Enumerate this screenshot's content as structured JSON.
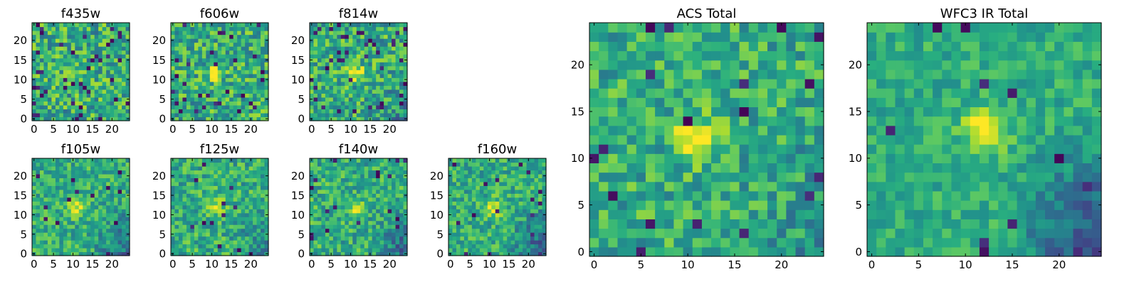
{
  "figure": {
    "colormap": "viridis",
    "colors": {
      "low": "#440154",
      "mid": "#21918c",
      "high": "#fde725",
      "axis": "#000000",
      "background": "#ffffff"
    }
  },
  "chart_data": [
    {
      "type": "heatmap",
      "title": "f435w",
      "grid": [
        25,
        25
      ],
      "xticks": [
        0,
        5,
        10,
        15,
        20
      ],
      "yticks": [
        0,
        5,
        10,
        15,
        20
      ],
      "xlim": [
        -0.5,
        24.5
      ],
      "ylim": [
        -0.5,
        24.5
      ],
      "source_peak": [
        11,
        12
      ],
      "peak_strength": 0.15,
      "noise": 0.95,
      "dark_speckle": 0.06,
      "dark_region": 0.0,
      "seed": 11
    },
    {
      "type": "heatmap",
      "title": "f606w",
      "grid": [
        25,
        25
      ],
      "xticks": [
        0,
        5,
        10,
        15,
        20
      ],
      "yticks": [
        0,
        5,
        10,
        15,
        20
      ],
      "xlim": [
        -0.5,
        24.5
      ],
      "ylim": [
        -0.5,
        24.5
      ],
      "source_peak": [
        11,
        12
      ],
      "peak_strength": 0.55,
      "noise": 0.9,
      "dark_speckle": 0.04,
      "dark_region": 0.0,
      "seed": 22
    },
    {
      "type": "heatmap",
      "title": "f814w",
      "grid": [
        25,
        25
      ],
      "xticks": [
        0,
        5,
        10,
        15,
        20
      ],
      "yticks": [
        0,
        5,
        10,
        15,
        20
      ],
      "xlim": [
        -0.5,
        24.5
      ],
      "ylim": [
        -0.5,
        24.5
      ],
      "source_peak": [
        11,
        12
      ],
      "peak_strength": 0.75,
      "noise": 0.9,
      "dark_speckle": 0.05,
      "dark_region": 0.3,
      "seed": 33
    },
    {
      "type": "heatmap",
      "title": "f105w",
      "grid": [
        25,
        25
      ],
      "xticks": [
        0,
        5,
        10,
        15,
        20
      ],
      "yticks": [
        0,
        5,
        10,
        15,
        20
      ],
      "xlim": [
        -0.5,
        24.5
      ],
      "ylim": [
        -0.5,
        24.5
      ],
      "source_peak": [
        11,
        12
      ],
      "peak_strength": 0.6,
      "noise": 0.7,
      "dark_speckle": 0.02,
      "dark_region": 0.5,
      "seed": 44
    },
    {
      "type": "heatmap",
      "title": "f125w",
      "grid": [
        25,
        25
      ],
      "xticks": [
        0,
        5,
        10,
        15,
        20
      ],
      "yticks": [
        0,
        5,
        10,
        15,
        20
      ],
      "xlim": [
        -0.5,
        24.5
      ],
      "ylim": [
        -0.5,
        24.5
      ],
      "source_peak": [
        11,
        12
      ],
      "peak_strength": 0.5,
      "noise": 0.75,
      "dark_speckle": 0.02,
      "dark_region": 0.35,
      "seed": 55
    },
    {
      "type": "heatmap",
      "title": "f140w",
      "grid": [
        25,
        25
      ],
      "xticks": [
        0,
        5,
        10,
        15,
        20
      ],
      "yticks": [
        0,
        5,
        10,
        15,
        20
      ],
      "xlim": [
        -0.5,
        24.5
      ],
      "ylim": [
        -0.5,
        24.5
      ],
      "source_peak": [
        11,
        12
      ],
      "peak_strength": 0.5,
      "noise": 0.75,
      "dark_speckle": 0.02,
      "dark_region": 0.55,
      "seed": 66
    },
    {
      "type": "heatmap",
      "title": "f160w",
      "grid": [
        25,
        25
      ],
      "xticks": [
        0,
        5,
        10,
        15,
        20
      ],
      "yticks": [
        0,
        5,
        10,
        15,
        20
      ],
      "xlim": [
        -0.5,
        24.5
      ],
      "ylim": [
        -0.5,
        24.5
      ],
      "source_peak": [
        11,
        12
      ],
      "peak_strength": 0.55,
      "noise": 0.7,
      "dark_speckle": 0.02,
      "dark_region": 0.75,
      "seed": 77
    },
    {
      "type": "heatmap",
      "title": "ACS Total",
      "grid": [
        25,
        25
      ],
      "xticks": [
        0,
        5,
        10,
        15,
        20
      ],
      "yticks": [
        0,
        5,
        10,
        15,
        20
      ],
      "xlim": [
        -0.5,
        24.5
      ],
      "ylim": [
        -0.5,
        24.5
      ],
      "source_peak": [
        11,
        12
      ],
      "peak_strength": 0.85,
      "noise": 0.75,
      "dark_speckle": 0.03,
      "dark_region": 0.25,
      "seed": 88
    },
    {
      "type": "heatmap",
      "title": "WFC3 IR Total",
      "grid": [
        25,
        25
      ],
      "xticks": [
        0,
        5,
        10,
        15,
        20
      ],
      "yticks": [
        0,
        5,
        10,
        15,
        20
      ],
      "xlim": [
        -0.5,
        24.5
      ],
      "ylim": [
        -0.5,
        24.5
      ],
      "source_peak": [
        12,
        13
      ],
      "peak_strength": 0.8,
      "noise": 0.5,
      "dark_speckle": 0.01,
      "dark_region": 0.85,
      "seed": 99
    }
  ]
}
